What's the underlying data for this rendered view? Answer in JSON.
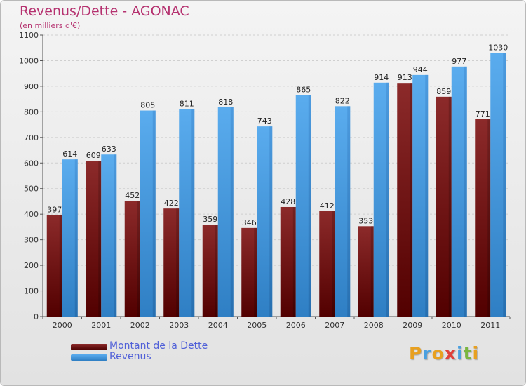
{
  "header": {
    "title": "Revenus/Dette - AGONAC",
    "subtitle": "(en milliers d'€)"
  },
  "legend": {
    "items": [
      {
        "label": "Montant de la Dette",
        "color": "#7a1111"
      },
      {
        "label": "Revenus",
        "color": "#4a9ee4"
      }
    ]
  },
  "logo": {
    "text": "Proxiti",
    "letters": [
      {
        "ch": "P",
        "color": "#e8a020"
      },
      {
        "ch": "r",
        "color": "#4aa0e0"
      },
      {
        "ch": "o",
        "color": "#e8a020"
      },
      {
        "ch": "x",
        "color": "#e0403a"
      },
      {
        "ch": "i",
        "color": "#4aa0e0"
      },
      {
        "ch": "t",
        "color": "#7ab640"
      },
      {
        "ch": "i",
        "color": "#e8a020"
      }
    ]
  },
  "chart_data": {
    "type": "bar",
    "title": "Revenus/Dette - AGONAC",
    "ylabel": "(en milliers d'€)",
    "categories": [
      "2000",
      "2001",
      "2002",
      "2003",
      "2004",
      "2005",
      "2006",
      "2007",
      "2008",
      "2009",
      "2010",
      "2011"
    ],
    "series": [
      {
        "name": "Montant de la Dette",
        "color": "#7a1111",
        "values": [
          397,
          609,
          452,
          422,
          359,
          346,
          428,
          412,
          353,
          913,
          859,
          771
        ]
      },
      {
        "name": "Revenus",
        "color": "#4a9ee4",
        "values": [
          614,
          633,
          805,
          811,
          818,
          743,
          865,
          822,
          914,
          944,
          977,
          1030
        ]
      }
    ],
    "ylim": [
      0,
      1100
    ],
    "yticks": [
      0,
      100,
      200,
      300,
      400,
      500,
      600,
      700,
      800,
      900,
      1000,
      1100
    ],
    "grid": true,
    "legend": "bottom-left"
  }
}
